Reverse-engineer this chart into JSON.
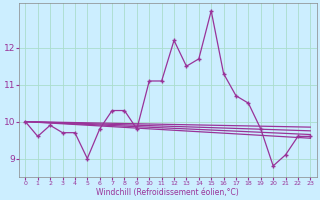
{
  "xlabel": "Windchill (Refroidissement éolien,°C)",
  "bg_color": "#cceeff",
  "line_color": "#993399",
  "grid_color": "#aaddcc",
  "xlim": [
    -0.5,
    23.5
  ],
  "ylim": [
    8.5,
    13.2
  ],
  "yticks": [
    9,
    10,
    11,
    12
  ],
  "xticks": [
    0,
    1,
    2,
    3,
    4,
    5,
    6,
    7,
    8,
    9,
    10,
    11,
    12,
    13,
    14,
    15,
    16,
    17,
    18,
    19,
    20,
    21,
    22,
    23
  ],
  "x": [
    0,
    1,
    2,
    3,
    4,
    5,
    6,
    7,
    8,
    9,
    10,
    11,
    12,
    13,
    14,
    15,
    16,
    17,
    18,
    19,
    20,
    21,
    22,
    23
  ],
  "line_main": [
    10.0,
    9.6,
    9.9,
    9.7,
    9.7,
    9.0,
    9.8,
    10.3,
    10.3,
    9.8,
    11.1,
    11.1,
    12.2,
    11.5,
    11.7,
    13.0,
    11.3,
    10.7,
    10.5,
    9.8,
    8.8,
    9.1,
    9.6,
    9.6
  ],
  "line_flat1_start": 10.0,
  "line_flat1_end": 9.65,
  "line_flat2_start": 10.0,
  "line_flat2_end": 9.55,
  "line_flat3_start": 10.0,
  "line_flat3_end": 9.75,
  "line_flat4_start": 10.0,
  "line_flat4_end": 9.85
}
